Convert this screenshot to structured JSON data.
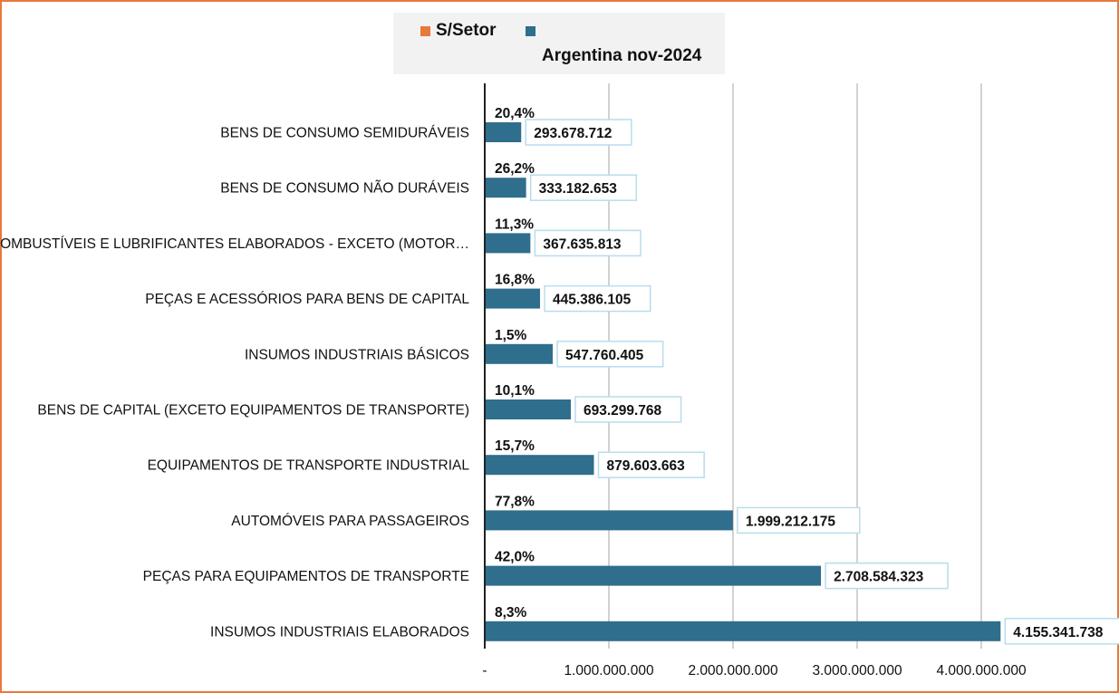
{
  "legend": {
    "items": [
      {
        "label": "S/Setor",
        "color": "#e8793a"
      },
      {
        "label": "Argentina nov-2024",
        "color": "#2f6e8c"
      }
    ]
  },
  "chart_data": {
    "type": "bar",
    "orientation": "horizontal",
    "title": "",
    "xlabel": "",
    "ylabel": "",
    "grid": "vertical",
    "legend_position": "top",
    "bar_color": "#2f6e8c",
    "categories": [
      "BENS DE CONSUMO SEMIDURÁVEIS",
      "BENS DE CONSUMO NÃO DURÁVEIS",
      "COMBUSTÍVEIS E LUBRIFICANTES ELABORADOS - EXCETO (MOTOR…",
      "PEÇAS E ACESSÓRIOS PARA BENS DE CAPITAL",
      "INSUMOS INDUSTRIAIS BÁSICOS",
      "BENS DE CAPITAL (EXCETO EQUIPAMENTOS DE TRANSPORTE)",
      "EQUIPAMENTOS DE TRANSPORTE INDUSTRIAL",
      "AUTOMÓVEIS PARA PASSAGEIROS",
      "PEÇAS PARA EQUIPAMENTOS DE TRANSPORTE",
      "INSUMOS INDUSTRIAIS ELABORADOS"
    ],
    "series": [
      {
        "name": "Argentina nov-2024",
        "values": [
          293678712,
          333182653,
          367635813,
          445386105,
          547760405,
          693299768,
          879603663,
          1999212175,
          2708584323,
          4155341738
        ],
        "value_labels": [
          "293.678.712",
          "333.182.653",
          "367.635.813",
          "445.386.105",
          "547.760.405",
          "693.299.768",
          "879.603.663",
          "1.999.212.175",
          "2.708.584.323",
          "4.155.341.738"
        ]
      },
      {
        "name": "S/Setor",
        "values": [
          20.4,
          26.2,
          11.3,
          16.8,
          1.5,
          10.1,
          15.7,
          77.8,
          42.0,
          8.3
        ],
        "value_labels": [
          "20,4%",
          "26,2%",
          "11,3%",
          "16,8%",
          "1,5%",
          "10,1%",
          "15,7%",
          "77,8%",
          "42,0%",
          "8,3%"
        ]
      }
    ],
    "xlim": [
      0,
      5000000000
    ],
    "x_ticks": [
      0,
      1000000000,
      2000000000,
      3000000000,
      4000000000
    ],
    "x_tick_labels": [
      "-",
      "1.000.000.000",
      "2.000.000.000",
      "3.000.000.000",
      "4.000.000.000"
    ]
  }
}
